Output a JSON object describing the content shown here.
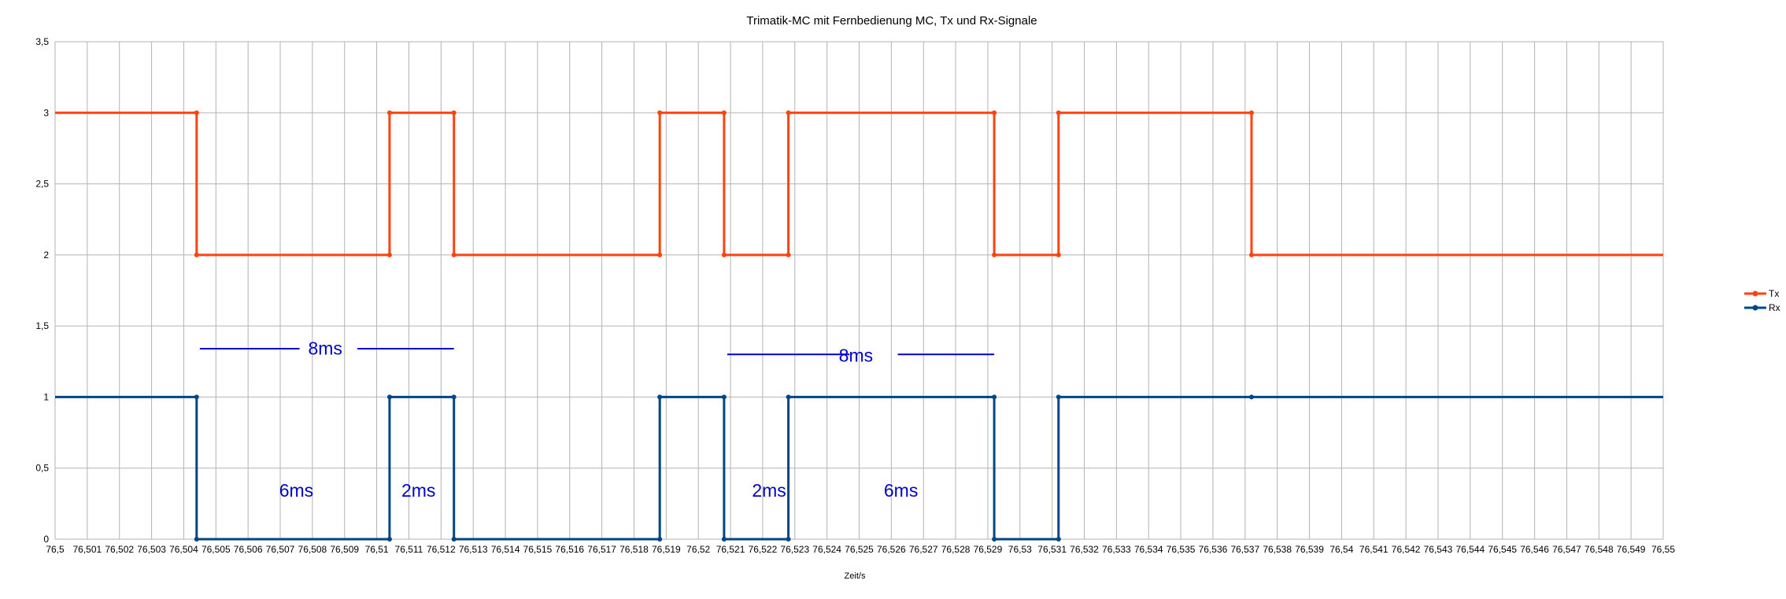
{
  "chart_data": {
    "type": "line",
    "title": "Trimatik-MC mit Fernbedienung MC, Tx und Rx-Signale",
    "xlabel": "Zeit/s",
    "ylabel": "",
    "xlim": [
      76.5,
      76.55
    ],
    "ylim": [
      0,
      3.5
    ],
    "x_ticks": [
      "76,5",
      "76,501",
      "76,502",
      "76,503",
      "76,504",
      "76,505",
      "76,506",
      "76,507",
      "76,508",
      "76,509",
      "76,51",
      "76,511",
      "76,512",
      "76,513",
      "76,514",
      "76,515",
      "76,516",
      "76,517",
      "76,518",
      "76,519",
      "76,52",
      "76,521",
      "76,522",
      "76,523",
      "76,524",
      "76,525",
      "76,526",
      "76,527",
      "76,528",
      "76,529",
      "76,53",
      "76,531",
      "76,532",
      "76,533",
      "76,534",
      "76,535",
      "76,536",
      "76,537",
      "76,538",
      "76,539",
      "76,54",
      "76,541",
      "76,542",
      "76,543",
      "76,544",
      "76,545",
      "76,546",
      "76,547",
      "76,548",
      "76,549",
      "76,55"
    ],
    "y_ticks": [
      "0",
      "0,5",
      "1",
      "1,5",
      "2",
      "2,5",
      "3",
      "3,5"
    ],
    "grid": true,
    "legend_position": "right",
    "series": [
      {
        "name": "Tx",
        "color": "#ff420e",
        "points": [
          [
            76.5,
            3
          ],
          [
            76.5044,
            3
          ],
          [
            76.5044,
            2
          ],
          [
            76.5104,
            2
          ],
          [
            76.5104,
            3
          ],
          [
            76.5124,
            3
          ],
          [
            76.5124,
            2
          ],
          [
            76.5188,
            2
          ],
          [
            76.5188,
            3
          ],
          [
            76.5208,
            3
          ],
          [
            76.5208,
            2
          ],
          [
            76.5228,
            2
          ],
          [
            76.5228,
            3
          ],
          [
            76.5292,
            3
          ],
          [
            76.5292,
            2
          ],
          [
            76.5312,
            2
          ],
          [
            76.5312,
            3
          ],
          [
            76.5372,
            3
          ],
          [
            76.5372,
            2
          ],
          [
            76.55,
            2
          ]
        ],
        "markers": [
          [
            76.5044,
            3
          ],
          [
            76.5044,
            2
          ],
          [
            76.5104,
            2
          ],
          [
            76.5104,
            3
          ],
          [
            76.5124,
            3
          ],
          [
            76.5124,
            2
          ],
          [
            76.5188,
            2
          ],
          [
            76.5188,
            3
          ],
          [
            76.5208,
            3
          ],
          [
            76.5208,
            2
          ],
          [
            76.5228,
            2
          ],
          [
            76.5228,
            3
          ],
          [
            76.5292,
            3
          ],
          [
            76.5292,
            2
          ],
          [
            76.5312,
            2
          ],
          [
            76.5312,
            3
          ],
          [
            76.5372,
            3
          ],
          [
            76.5372,
            2
          ]
        ]
      },
      {
        "name": "Rx",
        "color": "#004586",
        "points": [
          [
            76.5,
            1
          ],
          [
            76.5044,
            1
          ],
          [
            76.5044,
            0
          ],
          [
            76.5104,
            0
          ],
          [
            76.5104,
            1
          ],
          [
            76.5124,
            1
          ],
          [
            76.5124,
            0
          ],
          [
            76.5188,
            0
          ],
          [
            76.5188,
            1
          ],
          [
            76.5208,
            1
          ],
          [
            76.5208,
            0
          ],
          [
            76.5228,
            0
          ],
          [
            76.5228,
            1
          ],
          [
            76.5292,
            1
          ],
          [
            76.5292,
            0
          ],
          [
            76.5312,
            0
          ],
          [
            76.5312,
            1
          ],
          [
            76.5372,
            1
          ],
          [
            76.55,
            1
          ]
        ],
        "markers": [
          [
            76.5044,
            1
          ],
          [
            76.5044,
            0
          ],
          [
            76.5104,
            0
          ],
          [
            76.5104,
            1
          ],
          [
            76.5124,
            1
          ],
          [
            76.5124,
            0
          ],
          [
            76.5188,
            0
          ],
          [
            76.5188,
            1
          ],
          [
            76.5208,
            1
          ],
          [
            76.5208,
            0
          ],
          [
            76.5228,
            0
          ],
          [
            76.5228,
            1
          ],
          [
            76.5292,
            1
          ],
          [
            76.5292,
            0
          ],
          [
            76.5312,
            0
          ],
          [
            76.5312,
            1
          ],
          [
            76.5372,
            1
          ]
        ]
      }
    ],
    "annotations": {
      "color": "#0000cc",
      "labels": [
        {
          "text": "8ms",
          "x": 76.5084,
          "y": 1.3
        },
        {
          "text": "8ms",
          "x": 76.5249,
          "y": 1.25
        },
        {
          "text": "6ms",
          "x": 76.5075,
          "y": 0.3
        },
        {
          "text": "2ms",
          "x": 76.5113,
          "y": 0.3
        },
        {
          "text": "2ms",
          "x": 76.5222,
          "y": 0.3
        },
        {
          "text": "6ms",
          "x": 76.5263,
          "y": 0.3
        }
      ],
      "lines": [
        {
          "x1": 76.5045,
          "x2": 76.5076,
          "y": 1.34
        },
        {
          "x1": 76.5094,
          "x2": 76.5124,
          "y": 1.34
        },
        {
          "x1": 76.5209,
          "x2": 76.5247,
          "y": 1.3
        },
        {
          "x1": 76.5262,
          "x2": 76.5292,
          "y": 1.3
        }
      ]
    }
  }
}
